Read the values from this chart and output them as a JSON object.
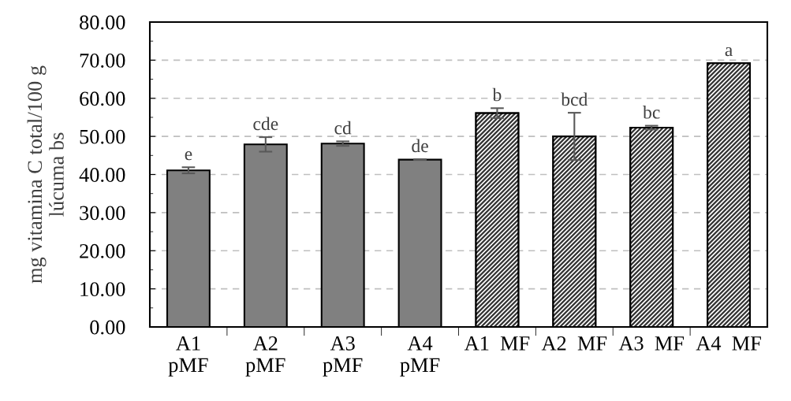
{
  "chart_data": {
    "type": "bar",
    "ylabel": "mg vitamina C total/100 g\nlúcuma bs",
    "categories": [
      "A1\npMF",
      "A2\npMF",
      "A3\npMF",
      "A4\npMF",
      "A1  MF",
      "A2  MF",
      "A3  MF",
      "A4  MF"
    ],
    "values": [
      41.1,
      47.9,
      48.1,
      43.9,
      56.1,
      50.0,
      52.3,
      69.2
    ],
    "colors": [
      "#808080",
      "#808080",
      "#808080",
      "#808080",
      "#333333",
      "#333333",
      "#333333",
      "#333333"
    ],
    "errors": [
      0.8,
      1.9,
      0.6,
      0.1,
      1.3,
      6.2,
      0.5,
      null
    ],
    "value_labels": [
      "e",
      "cde",
      "cd",
      "de",
      "b",
      "bcd",
      "bc",
      "a"
    ],
    "ylim": [
      0,
      80
    ],
    "yticks": [
      {
        "value": 0,
        "label": "0.00"
      },
      {
        "value": 10,
        "label": "10.00"
      },
      {
        "value": 20,
        "label": "20.00"
      },
      {
        "value": 30,
        "label": "30.00"
      },
      {
        "value": 40,
        "label": "40.00"
      },
      {
        "value": 50,
        "label": "50.00"
      },
      {
        "value": 60,
        "label": "60.00"
      },
      {
        "value": 70,
        "label": "70.00"
      },
      {
        "value": 80,
        "label": "80.00"
      }
    ],
    "grid": "y"
  }
}
